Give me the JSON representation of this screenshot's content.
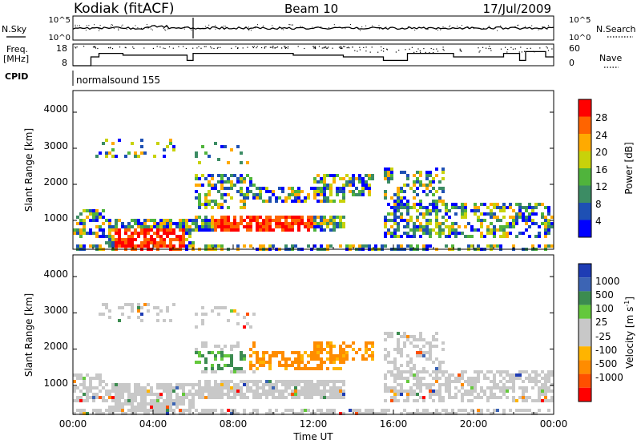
{
  "header": {
    "station": "Kodiak (fitACF)",
    "beam": "Beam 10",
    "date": "17/Jul/2009"
  },
  "colors": {
    "power_scale": [
      "#0000ff",
      "#1e50b4",
      "#3c8c64",
      "#50b43c",
      "#c8d20a",
      "#ffaa00",
      "#ff6400",
      "#ff0000"
    ],
    "velocity_scale": [
      "#1e3cb4",
      "#3c64b4",
      "#3c8c50",
      "#64c83c",
      "#c8c8c8",
      "#c8c8c8",
      "#ffb400",
      "#ff8c00",
      "#ff5000",
      "#ff0000"
    ],
    "line": "#000000"
  },
  "chart_data": [
    {
      "type": "line",
      "panel": "nsky-nsearch",
      "left_label": "N.Sky",
      "right_label": "N.Search",
      "left_ticks": [
        "10^5",
        "10^0"
      ],
      "right_ticks": [
        "10^5",
        "10^0"
      ],
      "x_range_hours": [
        0,
        24
      ]
    },
    {
      "type": "line",
      "panel": "freq-nave",
      "left_label_lines": [
        "Freq.",
        "[MHz]"
      ],
      "right_label": "Nave",
      "left_ticks": [
        "18",
        "8"
      ],
      "right_ticks": [
        "60",
        "0"
      ],
      "series": [
        {
          "name": "Freq.",
          "t": [
            0,
            0.9,
            0.9,
            1.3,
            1.3,
            2.5,
            2.5,
            5.7,
            5.7,
            6,
            6,
            11,
            11,
            13.5,
            13.5,
            15.5,
            15.5,
            16.7,
            16.7,
            19,
            19,
            21.5,
            21.5,
            22.3,
            22.3,
            22.6,
            22.6,
            23.6,
            23.6,
            24
          ],
          "v": [
            8,
            8,
            13,
            13,
            15,
            15,
            14,
            14,
            11,
            11,
            15,
            15,
            14,
            14,
            13,
            13,
            11,
            11,
            15,
            15,
            13,
            13,
            15,
            15,
            11,
            11,
            16,
            16,
            13,
            13
          ]
        }
      ]
    },
    {
      "type": "line",
      "panel": "cpid",
      "label": "CPID",
      "text": "normalsound 155"
    },
    {
      "type": "heatmap",
      "panel": "power",
      "ylabel": "Slant Range [km]",
      "yticks": [
        "1000",
        "2000",
        "3000",
        "4000"
      ],
      "ylim": [
        200,
        4600
      ],
      "xlim": [
        0,
        24
      ],
      "colorbar_label": "Power [dB]",
      "colorbar_ticks": [
        "4",
        "8",
        "12",
        "16",
        "20",
        "24",
        "28"
      ],
      "colorbar_range": [
        0,
        32
      ]
    },
    {
      "type": "heatmap",
      "panel": "velocity",
      "ylabel": "Slant Range [km]",
      "yticks": [
        "1000",
        "2000",
        "3000",
        "4000"
      ],
      "ylim": [
        200,
        4600
      ],
      "xlim": [
        0,
        24
      ],
      "xlabel": "Time UT",
      "xticks": [
        "00:00",
        "04:00",
        "08:00",
        "12:00",
        "16:00",
        "20:00",
        "00:00"
      ],
      "colorbar_label": "Velocity  [m s",
      "colorbar_label_sup": "-1",
      "colorbar_label_end": "]",
      "colorbar_ticks": [
        "1000",
        "500",
        "100",
        "25",
        "-25",
        "-100",
        "-500",
        "-1000"
      ]
    }
  ]
}
